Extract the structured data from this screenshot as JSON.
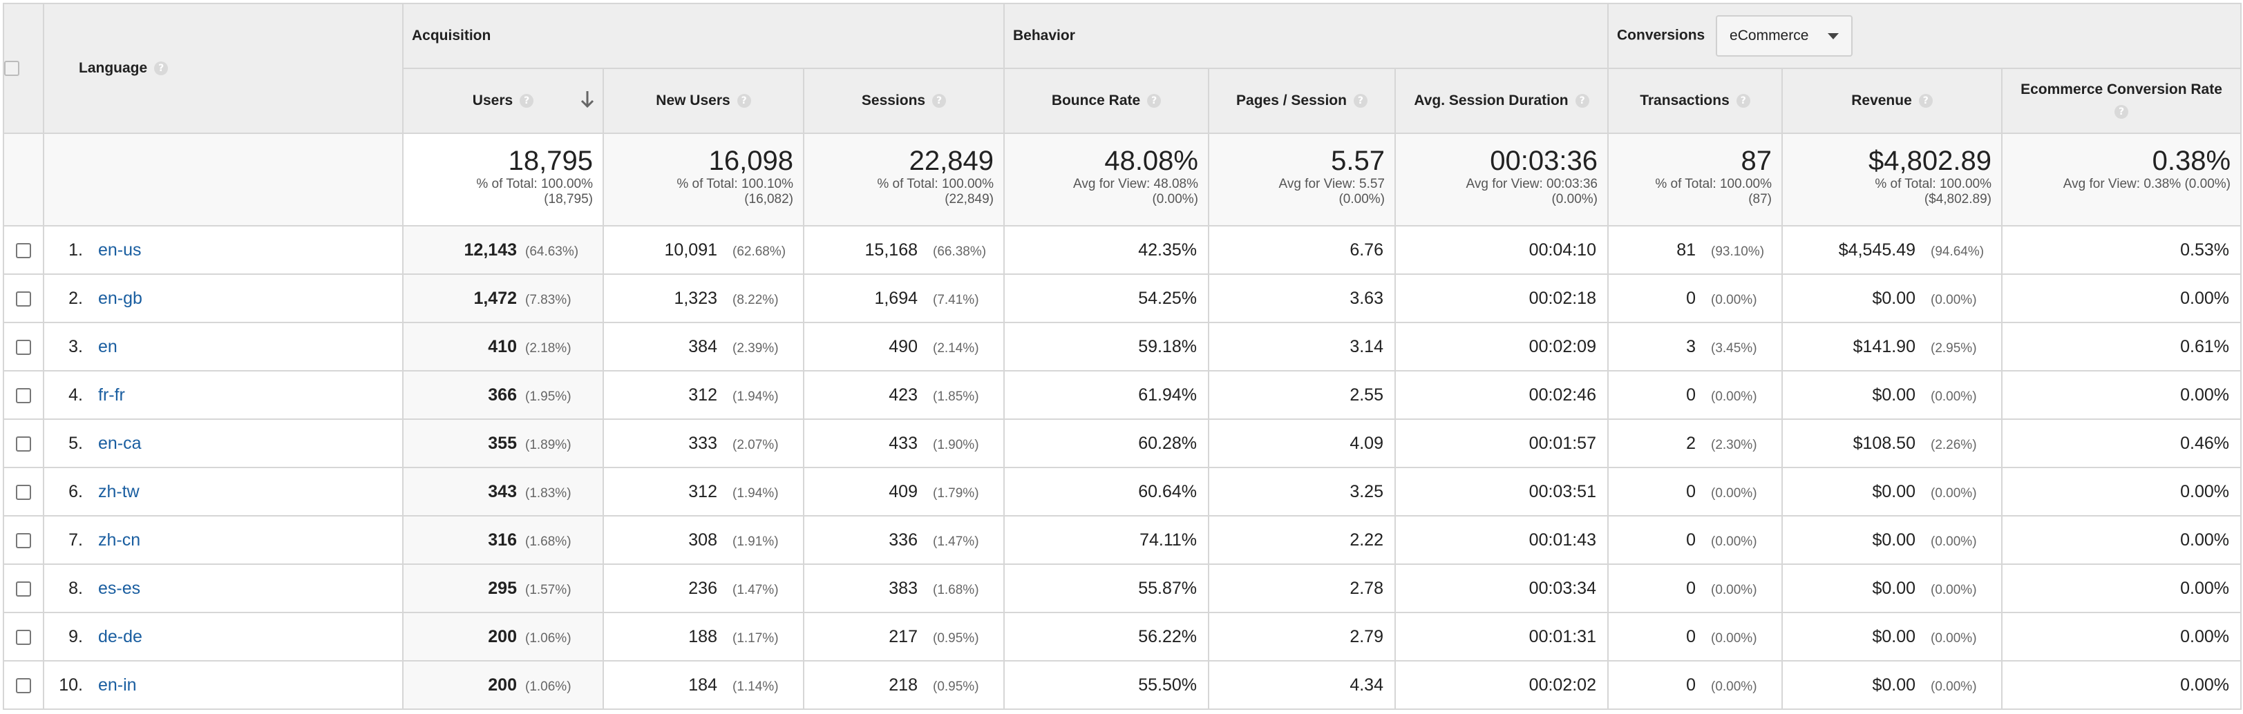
{
  "headers": {
    "language": "Language",
    "acquisition": "Acquisition",
    "behavior": "Behavior",
    "conversions": "Conversions",
    "conversions_dropdown": "eCommerce",
    "users": "Users",
    "new_users": "New Users",
    "sessions": "Sessions",
    "bounce_rate": "Bounce Rate",
    "pages_session": "Pages / Session",
    "avg_session_duration": "Avg. Session Duration",
    "transactions": "Transactions",
    "revenue": "Revenue",
    "ecommerce_conversion_rate": "Ecommerce Conversion Rate"
  },
  "totals": {
    "users": {
      "value": "18,795",
      "sub1": "% of Total: 100.00%",
      "sub2": "(18,795)"
    },
    "new_users": {
      "value": "16,098",
      "sub1": "% of Total: 100.10%",
      "sub2": "(16,082)"
    },
    "sessions": {
      "value": "22,849",
      "sub1": "% of Total: 100.00%",
      "sub2": "(22,849)"
    },
    "bounce_rate": {
      "value": "48.08%",
      "sub1": "Avg for View: 48.08%",
      "sub2": "(0.00%)"
    },
    "pages_session": {
      "value": "5.57",
      "sub1": "Avg for View: 5.57",
      "sub2": "(0.00%)"
    },
    "avg_session_duration": {
      "value": "00:03:36",
      "sub1": "Avg for View: 00:03:36",
      "sub2": "(0.00%)"
    },
    "transactions": {
      "value": "87",
      "sub1": "% of Total: 100.00%",
      "sub2": "(87)"
    },
    "revenue": {
      "value": "$4,802.89",
      "sub1": "% of Total: 100.00%",
      "sub2": "($4,802.89)"
    },
    "ecommerce_conversion_rate": {
      "value": "0.38%",
      "sub1": "Avg for View: 0.38% (0.00%)"
    }
  },
  "rows": [
    {
      "idx": "1.",
      "lang": "en-us",
      "users": "12,143",
      "users_pct": "(64.63%)",
      "new_users": "10,091",
      "new_users_pct": "(62.68%)",
      "sessions": "15,168",
      "sessions_pct": "(66.38%)",
      "bounce": "42.35%",
      "pps": "6.76",
      "dur": "00:04:10",
      "trans": "81",
      "trans_pct": "(93.10%)",
      "rev": "$4,545.49",
      "rev_pct": "(94.64%)",
      "conv": "0.53%"
    },
    {
      "idx": "2.",
      "lang": "en-gb",
      "users": "1,472",
      "users_pct": "(7.83%)",
      "new_users": "1,323",
      "new_users_pct": "(8.22%)",
      "sessions": "1,694",
      "sessions_pct": "(7.41%)",
      "bounce": "54.25%",
      "pps": "3.63",
      "dur": "00:02:18",
      "trans": "0",
      "trans_pct": "(0.00%)",
      "rev": "$0.00",
      "rev_pct": "(0.00%)",
      "conv": "0.00%"
    },
    {
      "idx": "3.",
      "lang": "en",
      "users": "410",
      "users_pct": "(2.18%)",
      "new_users": "384",
      "new_users_pct": "(2.39%)",
      "sessions": "490",
      "sessions_pct": "(2.14%)",
      "bounce": "59.18%",
      "pps": "3.14",
      "dur": "00:02:09",
      "trans": "3",
      "trans_pct": "(3.45%)",
      "rev": "$141.90",
      "rev_pct": "(2.95%)",
      "conv": "0.61%"
    },
    {
      "idx": "4.",
      "lang": "fr-fr",
      "users": "366",
      "users_pct": "(1.95%)",
      "new_users": "312",
      "new_users_pct": "(1.94%)",
      "sessions": "423",
      "sessions_pct": "(1.85%)",
      "bounce": "61.94%",
      "pps": "2.55",
      "dur": "00:02:46",
      "trans": "0",
      "trans_pct": "(0.00%)",
      "rev": "$0.00",
      "rev_pct": "(0.00%)",
      "conv": "0.00%"
    },
    {
      "idx": "5.",
      "lang": "en-ca",
      "users": "355",
      "users_pct": "(1.89%)",
      "new_users": "333",
      "new_users_pct": "(2.07%)",
      "sessions": "433",
      "sessions_pct": "(1.90%)",
      "bounce": "60.28%",
      "pps": "4.09",
      "dur": "00:01:57",
      "trans": "2",
      "trans_pct": "(2.30%)",
      "rev": "$108.50",
      "rev_pct": "(2.26%)",
      "conv": "0.46%"
    },
    {
      "idx": "6.",
      "lang": "zh-tw",
      "users": "343",
      "users_pct": "(1.83%)",
      "new_users": "312",
      "new_users_pct": "(1.94%)",
      "sessions": "409",
      "sessions_pct": "(1.79%)",
      "bounce": "60.64%",
      "pps": "3.25",
      "dur": "00:03:51",
      "trans": "0",
      "trans_pct": "(0.00%)",
      "rev": "$0.00",
      "rev_pct": "(0.00%)",
      "conv": "0.00%"
    },
    {
      "idx": "7.",
      "lang": "zh-cn",
      "users": "316",
      "users_pct": "(1.68%)",
      "new_users": "308",
      "new_users_pct": "(1.91%)",
      "sessions": "336",
      "sessions_pct": "(1.47%)",
      "bounce": "74.11%",
      "pps": "2.22",
      "dur": "00:01:43",
      "trans": "0",
      "trans_pct": "(0.00%)",
      "rev": "$0.00",
      "rev_pct": "(0.00%)",
      "conv": "0.00%"
    },
    {
      "idx": "8.",
      "lang": "es-es",
      "users": "295",
      "users_pct": "(1.57%)",
      "new_users": "236",
      "new_users_pct": "(1.47%)",
      "sessions": "383",
      "sessions_pct": "(1.68%)",
      "bounce": "55.87%",
      "pps": "2.78",
      "dur": "00:03:34",
      "trans": "0",
      "trans_pct": "(0.00%)",
      "rev": "$0.00",
      "rev_pct": "(0.00%)",
      "conv": "0.00%"
    },
    {
      "idx": "9.",
      "lang": "de-de",
      "users": "200",
      "users_pct": "(1.06%)",
      "new_users": "188",
      "new_users_pct": "(1.17%)",
      "sessions": "217",
      "sessions_pct": "(0.95%)",
      "bounce": "56.22%",
      "pps": "2.79",
      "dur": "00:01:31",
      "trans": "0",
      "trans_pct": "(0.00%)",
      "rev": "$0.00",
      "rev_pct": "(0.00%)",
      "conv": "0.00%"
    },
    {
      "idx": "10.",
      "lang": "en-in",
      "users": "200",
      "users_pct": "(1.06%)",
      "new_users": "184",
      "new_users_pct": "(1.14%)",
      "sessions": "218",
      "sessions_pct": "(0.95%)",
      "bounce": "55.50%",
      "pps": "4.34",
      "dur": "00:02:02",
      "trans": "0",
      "trans_pct": "(0.00%)",
      "rev": "$0.00",
      "rev_pct": "(0.00%)",
      "conv": "0.00%"
    }
  ]
}
